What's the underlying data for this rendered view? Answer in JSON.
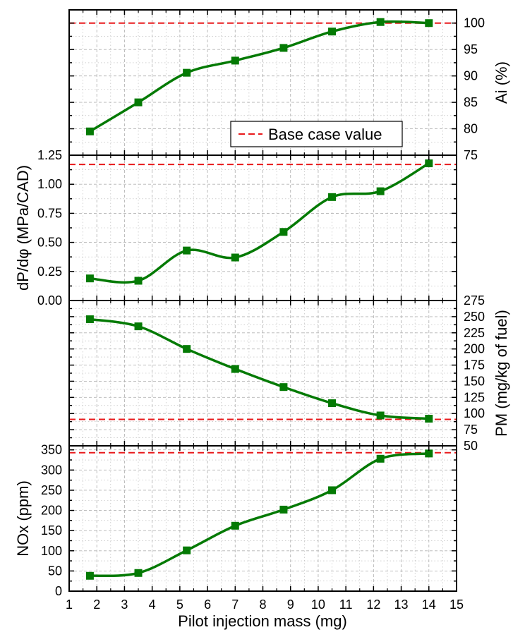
{
  "chart_data": [
    {
      "type": "scatter",
      "panel": "ai",
      "ylabel": "Ai (%)",
      "ylim": [
        75,
        102.5
      ],
      "yticks": [
        75,
        80,
        85,
        90,
        95,
        100
      ],
      "y_axis_side": "right",
      "base_case_value": 100,
      "grid": true,
      "series": [
        {
          "x": [
            1.75,
            3.5,
            5.25,
            7,
            8.75,
            10.5,
            12.25,
            14
          ],
          "y": [
            79.5,
            85,
            90.6,
            92.9,
            95.3,
            98.4,
            100.2,
            100
          ]
        }
      ]
    },
    {
      "type": "scatter",
      "panel": "dpdphi",
      "ylabel": "dP/dφ (MPa/CAD)",
      "ylim": [
        0,
        1.25
      ],
      "yticks": [
        "0.00",
        "0.25",
        "0.50",
        "0.75",
        "1.00",
        "1.25"
      ],
      "y_axis_side": "left",
      "base_case_value": 1.17,
      "grid": true,
      "series": [
        {
          "x": [
            1.75,
            3.5,
            5.25,
            7,
            8.75,
            10.5,
            12.25,
            14
          ],
          "y": [
            0.19,
            0.17,
            0.43,
            0.37,
            0.59,
            0.89,
            0.94,
            1.18
          ]
        }
      ]
    },
    {
      "type": "scatter",
      "panel": "pm",
      "ylabel": "PM (mg/kg of fuel)",
      "ylim": [
        50,
        275
      ],
      "yticks": [
        50,
        75,
        100,
        125,
        150,
        175,
        200,
        225,
        250,
        275
      ],
      "y_axis_side": "right",
      "base_case_value": 91,
      "grid": true,
      "series": [
        {
          "x": [
            1.75,
            3.5,
            5.25,
            7,
            8.75,
            10.5,
            12.25,
            14
          ],
          "y": [
            246,
            235,
            200,
            169,
            141,
            116,
            97,
            92
          ]
        }
      ]
    },
    {
      "type": "scatter",
      "panel": "nox",
      "ylabel": "NOx (ppm)",
      "ylim": [
        0,
        360
      ],
      "yticks": [
        0,
        50,
        100,
        150,
        200,
        250,
        300,
        350
      ],
      "y_axis_side": "left",
      "base_case_value": 343,
      "grid": true,
      "series": [
        {
          "x": [
            1.75,
            3.5,
            5.25,
            7,
            8.75,
            10.5,
            12.25,
            14
          ],
          "y": [
            38,
            45,
            101,
            162,
            202,
            250,
            328,
            341
          ]
        }
      ]
    }
  ],
  "x_axis": {
    "label": "Pilot injection mass (mg)",
    "xlim": [
      1,
      15
    ],
    "xticks": [
      1,
      2,
      3,
      4,
      5,
      6,
      7,
      8,
      9,
      10,
      11,
      12,
      13,
      14,
      15
    ]
  },
  "legend": {
    "label": "Base case value",
    "placement": "bottom-right of top panel"
  },
  "colors": {
    "series": "#047a04",
    "base_case": "#e8191b",
    "grid": "#b5b5b5",
    "axis": "#000000"
  }
}
